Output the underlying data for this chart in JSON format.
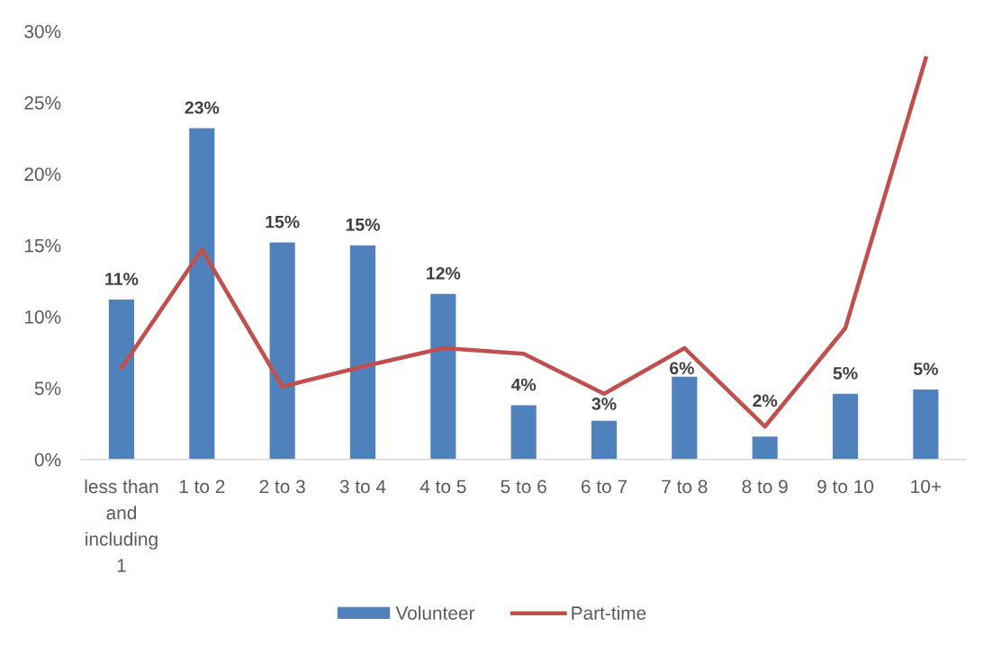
{
  "chart_data": {
    "type": "bar",
    "categories": [
      "less than and including 1",
      "1 to 2",
      "2 to 3",
      "3 to 4",
      "4 to 5",
      "5 to 6",
      "6 to 7",
      "7 to 8",
      "8 to 9",
      "9 to 10",
      "10+"
    ],
    "series": [
      {
        "name": "Volunteer",
        "color": "#4f81bd",
        "values": [
          11.2,
          23.2,
          15.2,
          15.0,
          11.6,
          3.8,
          2.7,
          5.8,
          1.6,
          4.6,
          4.9
        ],
        "value_labels": [
          "11%",
          "23%",
          "15%",
          "15%",
          "12%",
          "4%",
          "3%",
          "6%",
          "2%",
          "5%",
          "5%"
        ]
      },
      {
        "name": "Part-time",
        "type": "line",
        "color": "#c0504d",
        "values": [
          6.4,
          14.7,
          5.1,
          6.5,
          7.8,
          7.4,
          4.6,
          7.8,
          2.3,
          9.2,
          28.1
        ]
      }
    ],
    "ylim": [
      0,
      30
    ],
    "yticks": [
      {
        "value": 0,
        "label": "0%"
      },
      {
        "value": 5,
        "label": "5%"
      },
      {
        "value": 10,
        "label": "10%"
      },
      {
        "value": 15,
        "label": "15%"
      },
      {
        "value": 20,
        "label": "20%"
      },
      {
        "value": 25,
        "label": "25%"
      },
      {
        "value": 30,
        "label": "30%"
      }
    ],
    "grid": false,
    "legend": "bottom",
    "line_style": "solid"
  }
}
